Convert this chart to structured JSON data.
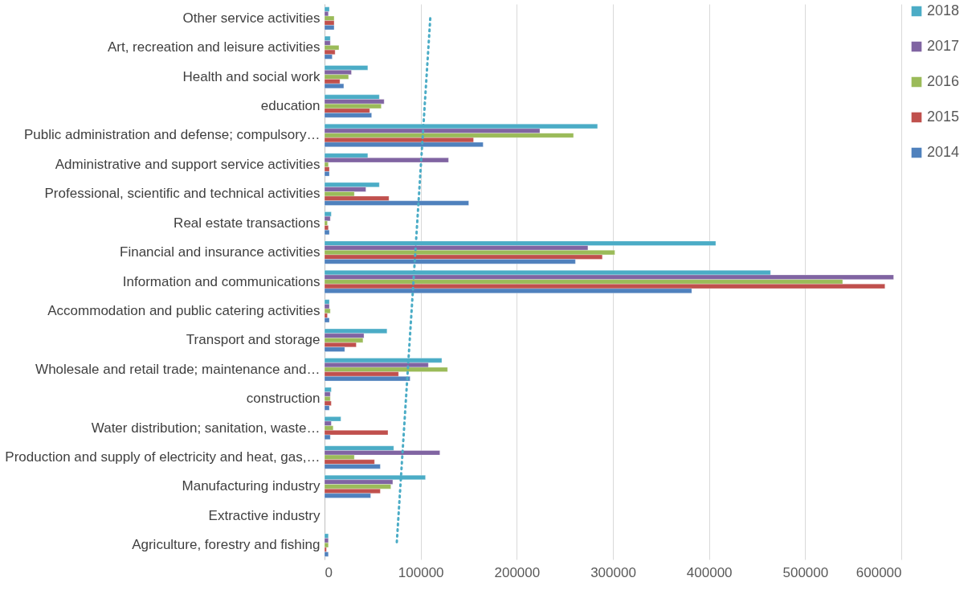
{
  "chart_data": {
    "type": "bar",
    "orientation": "horizontal",
    "categories": [
      "Other service activities",
      "Art, recreation and leisure activities",
      "Health and social work",
      "education",
      "Public administration and defense; compulsory…",
      "Administrative and support service activities",
      "Professional, scientific and technical activities",
      "Real estate  transactions",
      "Financial and insurance activities",
      "Information and communications",
      "Accommodation and public catering activities",
      "Transport and storage",
      "Wholesale and retail trade; maintenance and…",
      "construction",
      "Water distribution; sanitation,  waste…",
      "Production and supply of electricity and heat, gas,…",
      "Manufacturing industry",
      "Extractive industry",
      "Agriculture, forestry and fishing"
    ],
    "series": [
      {
        "name": "2018",
        "color": "#4bacc6",
        "values": [
          5000,
          6000,
          45000,
          57000,
          284000,
          45000,
          57000,
          7000,
          407000,
          464000,
          5000,
          65000,
          122000,
          7000,
          17000,
          72000,
          105000,
          null,
          4000
        ]
      },
      {
        "name": "2017",
        "color": "#8064a2",
        "values": [
          4000,
          6000,
          28000,
          62000,
          224000,
          129000,
          43000,
          6000,
          274000,
          592000,
          5000,
          41000,
          108000,
          6000,
          7000,
          120000,
          71000,
          null,
          4000
        ]
      },
      {
        "name": "2016",
        "color": "#9bbb59",
        "values": [
          10000,
          15000,
          25000,
          59000,
          259000,
          4000,
          31000,
          3000,
          302000,
          539000,
          6000,
          40000,
          128000,
          6000,
          9000,
          31000,
          69000,
          null,
          4000
        ]
      },
      {
        "name": "2015",
        "color": "#c0504d",
        "values": [
          10000,
          11000,
          16000,
          47000,
          155000,
          5000,
          67000,
          4000,
          289000,
          583000,
          3000,
          33000,
          77000,
          7000,
          66000,
          52000,
          58000,
          null,
          2000
        ]
      },
      {
        "name": "2014",
        "color": "#4f81bd",
        "values": [
          10000,
          8000,
          20000,
          49000,
          165000,
          5000,
          150000,
          5000,
          261000,
          382000,
          5000,
          21000,
          89000,
          5000,
          6000,
          58000,
          48000,
          null,
          4000
        ]
      },
      {
        "type": "line",
        "color": "#4bacc6",
        "line_style": "dotted",
        "values": [
          110000,
          null,
          null,
          null,
          null,
          null,
          null,
          null,
          null,
          null,
          null,
          null,
          null,
          null,
          null,
          null,
          null,
          null,
          75000
        ]
      }
    ],
    "xlim": [
      0,
      600000
    ],
    "xticks": [
      0,
      100000,
      200000,
      300000,
      400000,
      500000,
      600000
    ],
    "grid": "x",
    "legend": "right"
  }
}
